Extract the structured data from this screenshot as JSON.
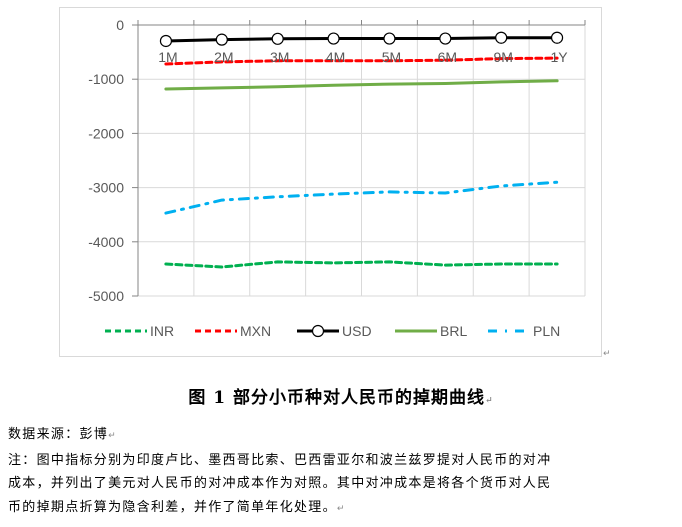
{
  "chart_data": {
    "type": "line",
    "title": "图 1 部分小币种对人民币的掉期曲线",
    "xlabel": "",
    "ylabel": "",
    "categories": [
      "1M",
      "2M",
      "3M",
      "4M",
      "5M",
      "6M",
      "9M",
      "1Y"
    ],
    "ylim": [
      -5000,
      0
    ],
    "yticks": [
      0,
      -1000,
      -2000,
      -3000,
      -4000,
      -5000
    ],
    "grid": true,
    "legend_position": "bottom",
    "x_axis_position": "top",
    "series": [
      {
        "name": "INR",
        "color": "#00b050",
        "style": "dashed",
        "values": [
          -4410,
          -4465,
          -4370,
          -4390,
          -4370,
          -4430,
          -4410,
          -4410
        ]
      },
      {
        "name": "MXN",
        "color": "#ff0000",
        "style": "dashed",
        "values": [
          -720,
          -680,
          -660,
          -660,
          -660,
          -650,
          -620,
          -610
        ]
      },
      {
        "name": "USD",
        "color": "#000000",
        "style": "solid-marker",
        "values": [
          -295,
          -270,
          -255,
          -250,
          -250,
          -250,
          -235,
          -235
        ]
      },
      {
        "name": "BRL",
        "color": "#70ad47",
        "style": "solid",
        "values": [
          -1180,
          -1160,
          -1140,
          -1110,
          -1090,
          -1080,
          -1050,
          -1030
        ]
      },
      {
        "name": "PLN",
        "color": "#00b0f0",
        "style": "dash-dot",
        "values": [
          -3470,
          -3230,
          -3170,
          -3120,
          -3080,
          -3100,
          -2970,
          -2900
        ]
      }
    ]
  },
  "legend": {
    "items": [
      "INR",
      "MXN",
      "USD",
      "BRL",
      "PLN"
    ]
  },
  "caption": "图 1 部分小币种对人民币的掉期曲线",
  "notes": {
    "source": "数据来源：彭博",
    "line1": "注：图中指标分别为印度卢比、墨西哥比索、巴西雷亚尔和波兰兹罗提对人民币的对冲",
    "line2": "成本，并列出了美元对人民币的对冲成本作为对照。其中对冲成本是将各个货币对人民",
    "line3": "币的掉期点折算为隐含利差，并作了简单年化处理。"
  },
  "marks": {
    "return": "↵"
  }
}
